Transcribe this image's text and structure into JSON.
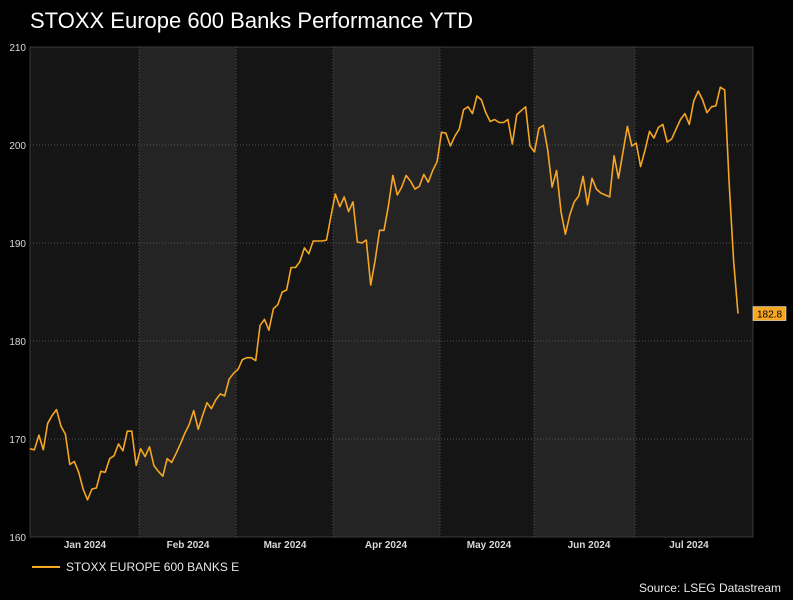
{
  "chart_data": {
    "type": "line",
    "title": "STOXX Europe 600 Banks Performance YTD",
    "xlabel": "",
    "ylabel": "",
    "ylim": [
      160,
      210
    ],
    "yticks": [
      160,
      170,
      180,
      190,
      200,
      210
    ],
    "months": [
      "Jan 2024",
      "Feb 2024",
      "Mar 2024",
      "Apr 2024",
      "May 2024",
      "Jun 2024",
      "Jul 2024"
    ],
    "last_value_label": "182.8",
    "line_color": "#f5a623",
    "series": [
      {
        "name": "STOXX EUROPE 600 BANKS E",
        "values": [
          169.0,
          168.9,
          170.4,
          168.9,
          171.6,
          172.4,
          173.0,
          171.3,
          170.5,
          167.4,
          167.7,
          166.6,
          164.9,
          163.8,
          164.9,
          165.0,
          166.7,
          166.6,
          168.0,
          168.3,
          169.5,
          168.8,
          170.8,
          170.8,
          167.3,
          169.0,
          168.2,
          169.2,
          167.3,
          166.7,
          166.2,
          168.0,
          167.6,
          168.5,
          169.5,
          170.6,
          171.5,
          172.9,
          171.0,
          172.4,
          173.7,
          173.1,
          174.0,
          174.6,
          174.4,
          176.1,
          176.7,
          177.1,
          178.1,
          178.3,
          178.3,
          178.0,
          181.6,
          182.2,
          181.1,
          183.3,
          183.7,
          185.0,
          185.2,
          187.5,
          187.5,
          188.1,
          189.5,
          188.9,
          190.2,
          190.2,
          190.2,
          190.3,
          192.7,
          195.0,
          193.7,
          194.7,
          193.2,
          194.2,
          190.1,
          190.0,
          190.3,
          185.7,
          188.2,
          191.3,
          191.3,
          193.8,
          196.9,
          194.9,
          195.7,
          196.9,
          196.3,
          195.5,
          195.8,
          197.0,
          196.2,
          197.4,
          198.3,
          201.3,
          201.2,
          199.9,
          200.9,
          201.6,
          203.6,
          203.9,
          203.2,
          205.0,
          204.6,
          203.3,
          202.4,
          202.6,
          202.3,
          202.3,
          202.6,
          200.1,
          203.1,
          203.5,
          203.9,
          199.9,
          199.3,
          201.7,
          202.0,
          199.5,
          195.7,
          197.4,
          193.2,
          190.9,
          192.9,
          194.2,
          194.8,
          196.8,
          193.9,
          196.6,
          195.5,
          195.1,
          194.9,
          194.7,
          198.9,
          196.6,
          199.3,
          201.9,
          199.9,
          200.2,
          197.8,
          199.5,
          201.4,
          200.7,
          201.8,
          202.1,
          200.3,
          200.6,
          201.6,
          202.6,
          203.2,
          202.1,
          204.5,
          205.5,
          204.6,
          203.3,
          203.9,
          204.0,
          205.9,
          205.6,
          196.2,
          188.2,
          182.8
        ]
      }
    ]
  },
  "legend": {
    "label": "STOXX EUROPE 600 BANKS E"
  },
  "source": "Source: LSEG Datastream"
}
